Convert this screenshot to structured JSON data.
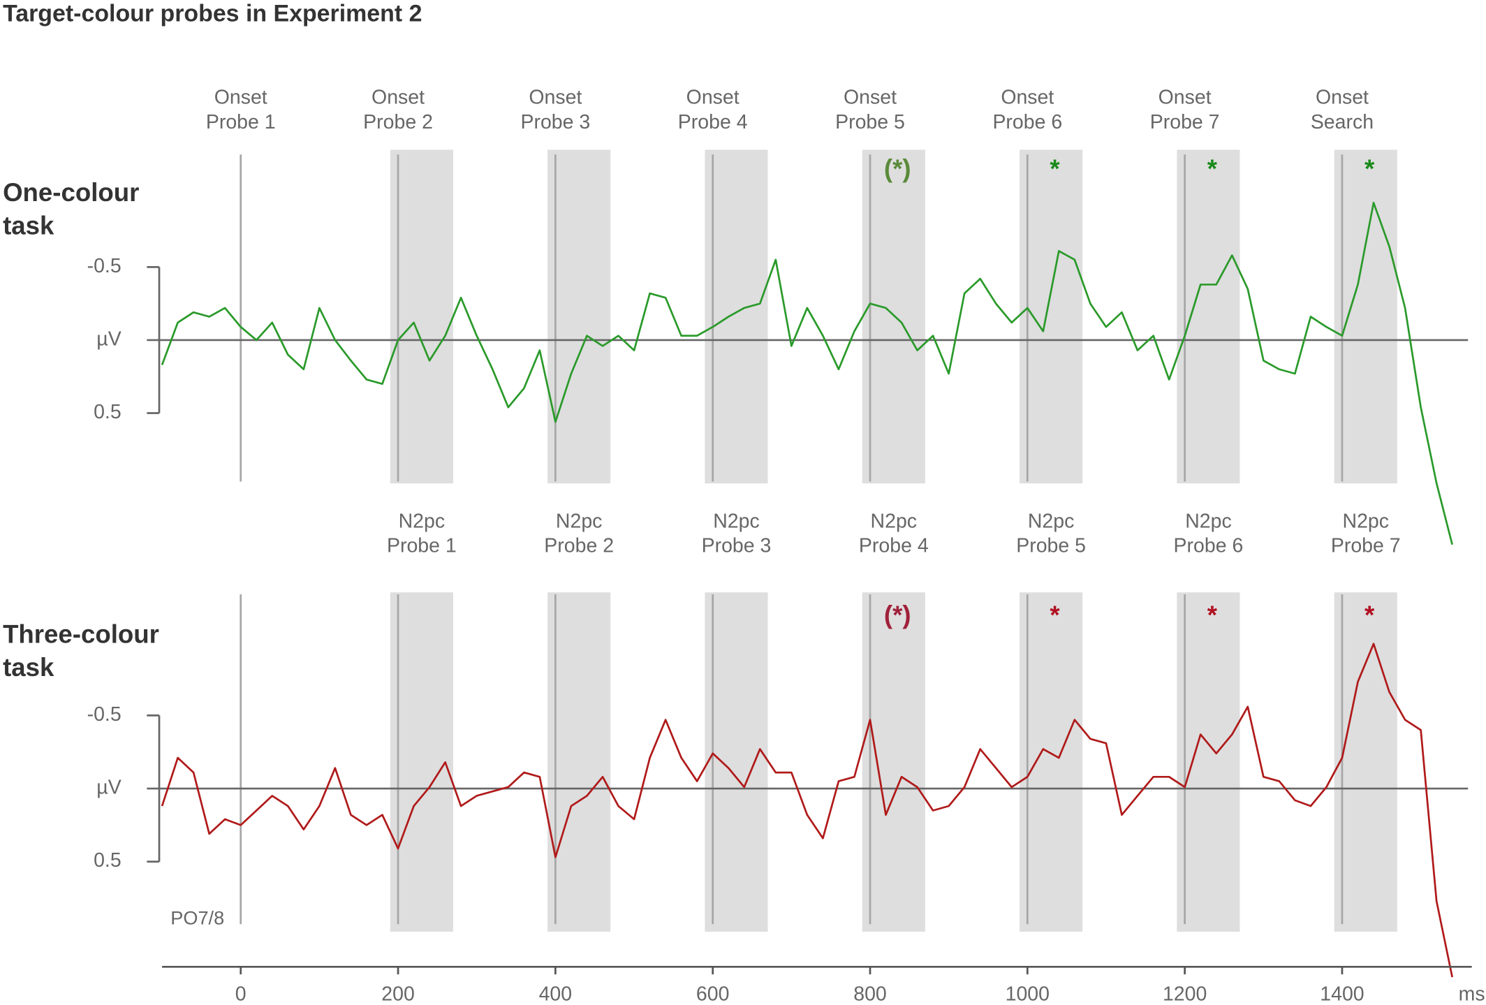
{
  "chart_data": [
    {
      "type": "line",
      "title": "Target-colour probes in Experiment 2",
      "row_label": [
        "One-colour",
        "task"
      ],
      "x": [
        -100,
        -80,
        -60,
        -40,
        -20,
        0,
        20,
        40,
        60,
        80,
        100,
        120,
        140,
        160,
        180,
        200,
        220,
        240,
        260,
        280,
        300,
        320,
        340,
        360,
        380,
        400,
        420,
        440,
        460,
        480,
        500,
        520,
        540,
        560,
        580,
        600,
        620,
        640,
        660,
        680,
        700,
        720,
        740,
        760,
        780,
        800,
        820,
        840,
        860,
        880,
        900,
        920,
        940,
        960,
        980,
        1000,
        1020,
        1040,
        1060,
        1080,
        1100,
        1120,
        1140,
        1160,
        1180,
        1200,
        1220,
        1240,
        1260,
        1280,
        1300,
        1320,
        1340,
        1360,
        1380,
        1400,
        1420,
        1440,
        1460,
        1480,
        1500,
        1520,
        1540
      ],
      "series": [
        {
          "color": "#2a9a2a",
          "values": [
            0.17,
            -0.12,
            -0.19,
            -0.16,
            -0.22,
            -0.09,
            0,
            -0.12,
            0.1,
            0.2,
            -0.22,
            0,
            0.14,
            0.27,
            0.3,
            0,
            -0.12,
            0.14,
            -0.03,
            -0.29,
            -0.03,
            0.2,
            0.46,
            0.33,
            0.07,
            0.56,
            0.23,
            -0.03,
            0.04,
            -0.03,
            0.07,
            -0.32,
            -0.29,
            -0.03,
            -0.03,
            -0.09,
            -0.16,
            -0.22,
            -0.25,
            -0.55,
            0.04,
            -0.22,
            -0.03,
            0.2,
            -0.06,
            -0.25,
            -0.22,
            -0.12,
            0.07,
            -0.03,
            0.23,
            -0.32,
            -0.42,
            -0.25,
            -0.12,
            -0.22,
            -0.06,
            -0.61,
            -0.55,
            -0.25,
            -0.09,
            -0.19,
            0.07,
            -0.03,
            0.27,
            -0.03,
            -0.38,
            -0.38,
            -0.58,
            -0.35,
            0.14,
            0.2,
            0.23,
            -0.16,
            -0.09,
            -0.03,
            -0.38,
            -0.94,
            -0.64,
            -0.22,
            0.46,
            0.98,
            1.4
          ]
        }
      ],
      "ylim": [
        -1.4,
        1.5
      ],
      "y_inverted": true,
      "yticks": [
        -0.5,
        {
          "value": 0,
          "label": "µV"
        },
        0.5
      ],
      "event_lines": [
        0,
        200,
        400,
        600,
        800,
        1000,
        1200,
        1400
      ],
      "windows": [
        [
          190,
          270
        ],
        [
          390,
          470
        ],
        [
          590,
          670
        ],
        [
          790,
          870
        ],
        [
          990,
          1070
        ],
        [
          1190,
          1270
        ],
        [
          1390,
          1470
        ]
      ],
      "label_anchor": "event_lines",
      "labels": [
        [
          "Onset",
          "Probe 1"
        ],
        [
          "Onset",
          "Probe 2"
        ],
        [
          "Onset",
          "Probe 3"
        ],
        [
          "Onset",
          "Probe 4"
        ],
        [
          "Onset",
          "Probe 5"
        ],
        [
          "Onset",
          "Probe 6"
        ],
        [
          "Onset",
          "Probe 7"
        ],
        [
          "Onset",
          "Search"
        ]
      ],
      "annotations": [
        {
          "text": "(*)",
          "window": 3,
          "color": "#5a8a3a"
        },
        {
          "text": "*",
          "window": 4,
          "color": "#1a8a1a"
        },
        {
          "text": "*",
          "window": 5,
          "color": "#1a8a1a"
        },
        {
          "text": "*",
          "window": 6,
          "color": "#1a8a1a"
        }
      ]
    },
    {
      "type": "line",
      "row_label": [
        "Three-colour",
        "task"
      ],
      "x": [
        -100,
        -80,
        -60,
        -40,
        -20,
        0,
        20,
        40,
        60,
        80,
        100,
        120,
        140,
        160,
        180,
        200,
        220,
        240,
        260,
        280,
        300,
        320,
        340,
        360,
        380,
        400,
        420,
        440,
        460,
        480,
        500,
        520,
        540,
        560,
        580,
        600,
        620,
        640,
        660,
        680,
        700,
        720,
        740,
        760,
        780,
        800,
        820,
        840,
        860,
        880,
        900,
        920,
        940,
        960,
        980,
        1000,
        1020,
        1040,
        1060,
        1080,
        1100,
        1120,
        1140,
        1160,
        1180,
        1200,
        1220,
        1240,
        1260,
        1280,
        1300,
        1320,
        1340,
        1360,
        1380,
        1400,
        1420,
        1440,
        1460,
        1480,
        1500,
        1520,
        1540
      ],
      "series": [
        {
          "color": "#b01a1a",
          "values": [
            0.12,
            -0.21,
            -0.11,
            0.31,
            0.21,
            0.25,
            0.15,
            0.05,
            0.12,
            0.28,
            0.12,
            -0.14,
            0.18,
            0.25,
            0.18,
            0.41,
            0.12,
            -0.01,
            -0.18,
            0.12,
            0.05,
            0.02,
            -0.01,
            -0.11,
            -0.08,
            0.47,
            0.12,
            0.05,
            -0.08,
            0.12,
            0.21,
            -0.21,
            -0.47,
            -0.21,
            -0.05,
            -0.24,
            -0.14,
            -0.01,
            -0.27,
            -0.11,
            -0.11,
            0.18,
            0.34,
            -0.05,
            -0.08,
            -0.47,
            0.18,
            -0.08,
            -0.01,
            0.15,
            0.12,
            -0.01,
            -0.27,
            -0.14,
            -0.01,
            -0.08,
            -0.27,
            -0.21,
            -0.47,
            -0.34,
            -0.31,
            0.18,
            0.05,
            -0.08,
            -0.08,
            -0.01,
            -0.37,
            -0.24,
            -0.37,
            -0.56,
            -0.08,
            -0.05,
            0.08,
            0.12,
            -0.01,
            -0.21,
            -0.73,
            -0.99,
            -0.66,
            -0.47,
            -0.4,
            0.77,
            1.29
          ]
        }
      ],
      "ylim": [
        -1.4,
        1.2
      ],
      "y_inverted": true,
      "yticks": [
        -0.5,
        {
          "value": 0,
          "label": "µV"
        },
        0.5
      ],
      "event_lines": [
        0,
        200,
        400,
        600,
        800,
        1000,
        1200,
        1400
      ],
      "windows": [
        [
          190,
          270
        ],
        [
          390,
          470
        ],
        [
          590,
          670
        ],
        [
          790,
          870
        ],
        [
          990,
          1070
        ],
        [
          1190,
          1270
        ],
        [
          1390,
          1470
        ]
      ],
      "label_anchor": "windows",
      "labels": [
        [
          "N2pc",
          "Probe 1"
        ],
        [
          "N2pc",
          "Probe 2"
        ],
        [
          "N2pc",
          "Probe 3"
        ],
        [
          "N2pc",
          "Probe 4"
        ],
        [
          "N2pc",
          "Probe 5"
        ],
        [
          "N2pc",
          "Probe 6"
        ],
        [
          "N2pc",
          "Probe 7"
        ]
      ],
      "annotations": [
        {
          "text": "(*)",
          "window": 3,
          "color": "#a0203a"
        },
        {
          "text": "*",
          "window": 4,
          "color": "#b01020"
        },
        {
          "text": "*",
          "window": 5,
          "color": "#b01020"
        },
        {
          "text": "*",
          "window": 6,
          "color": "#b01020"
        }
      ],
      "channel": "PO7/8",
      "xlim": [
        -100,
        1560
      ],
      "xticks": [
        0,
        200,
        400,
        600,
        800,
        1000,
        1200,
        1400
      ],
      "x_label": "ms"
    }
  ]
}
